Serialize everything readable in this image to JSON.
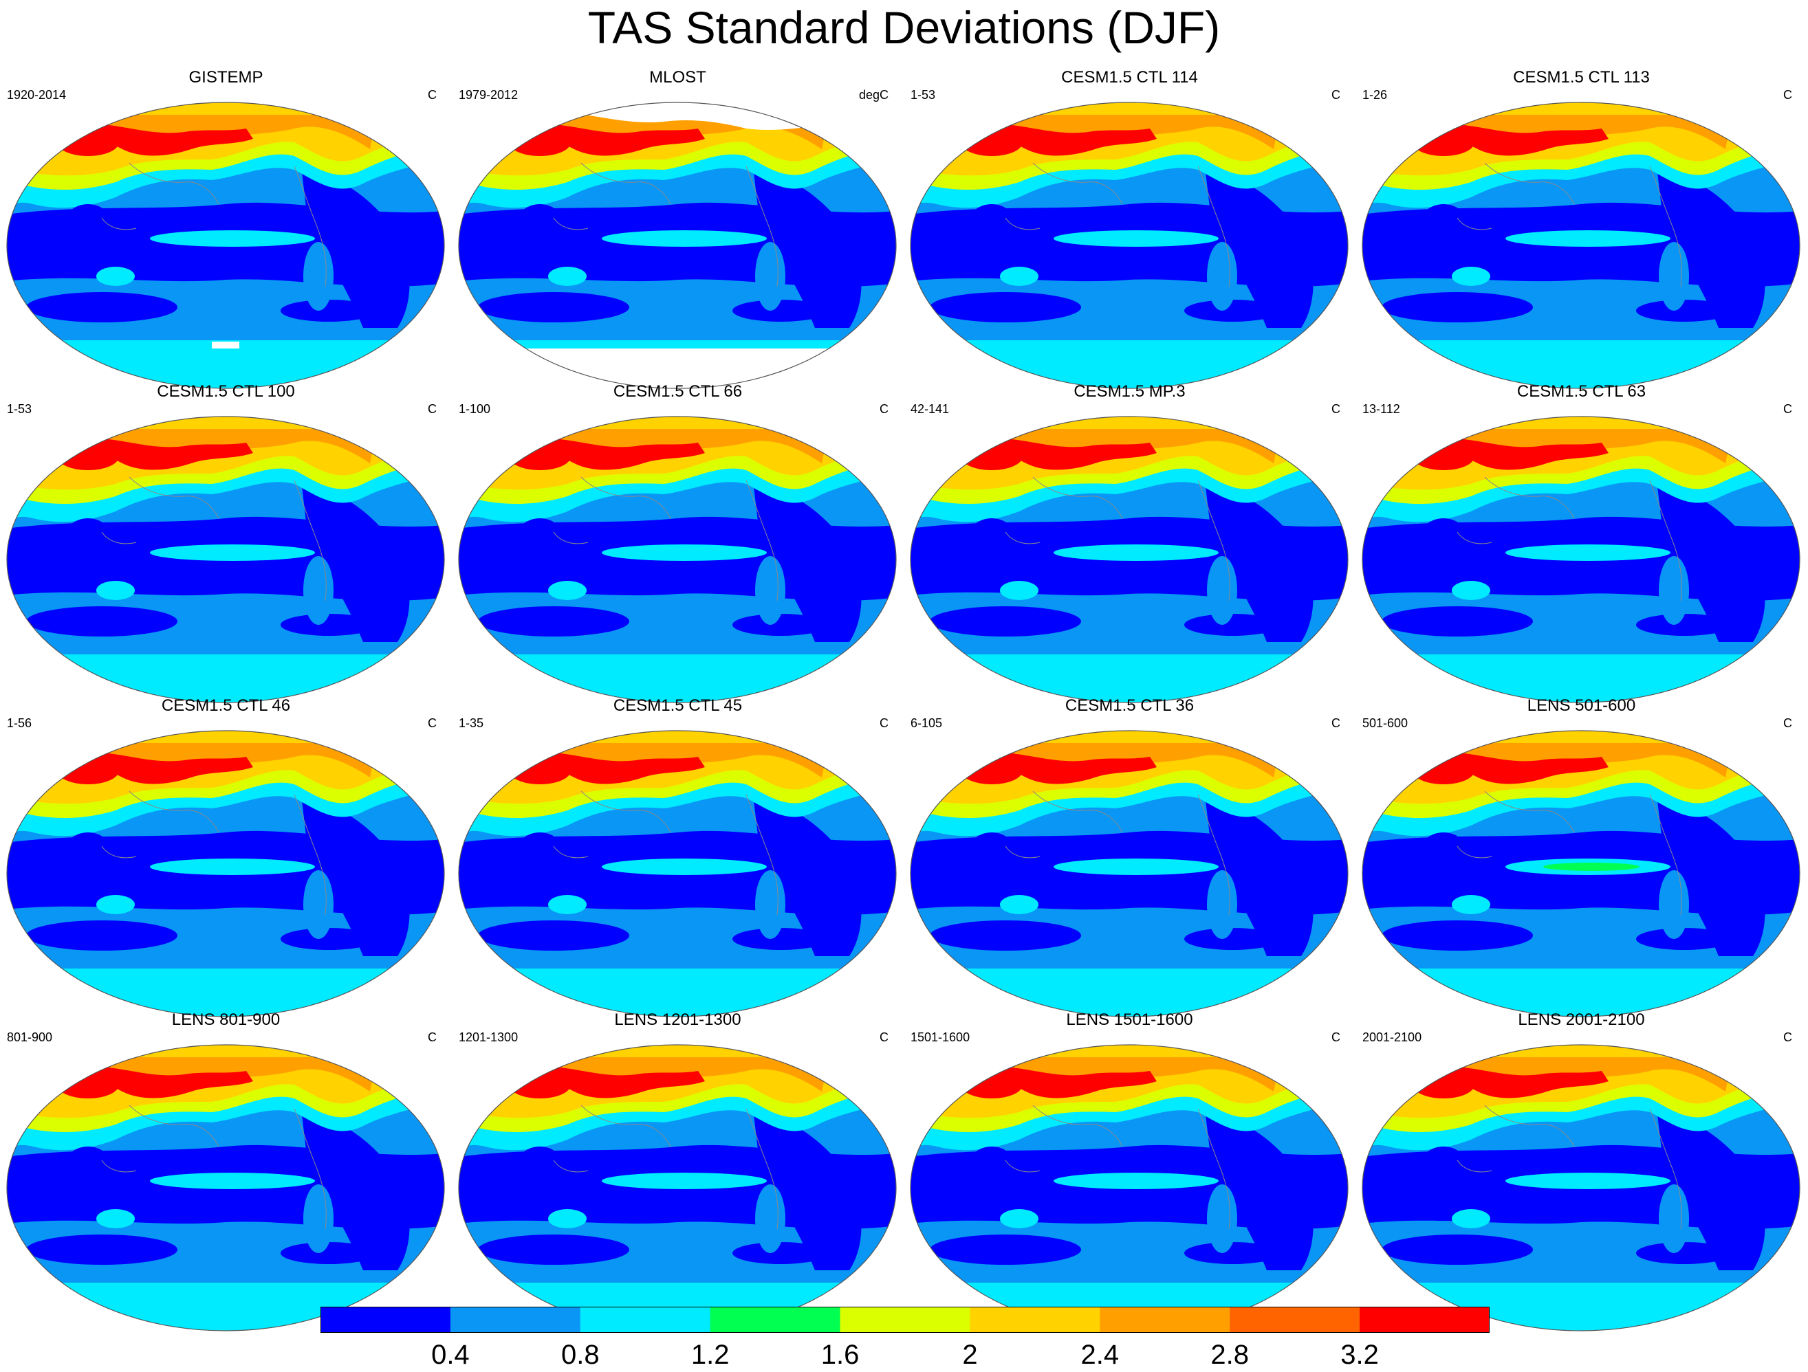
{
  "title": "TAS Standard Deviations (DJF)",
  "panels": [
    {
      "title": "GISTEMP",
      "left": "1920-2014",
      "right": "C",
      "missing": "gistemp"
    },
    {
      "title": "MLOST",
      "left": "1979-2012",
      "right": "degC",
      "missing": "mlost"
    },
    {
      "title": "CESM1.5 CTL 114",
      "left": "1-53",
      "right": "C"
    },
    {
      "title": "CESM1.5 CTL 113",
      "left": "1-26",
      "right": "C"
    },
    {
      "title": "CESM1.5 CTL 100",
      "left": "1-53",
      "right": "C"
    },
    {
      "title": "CESM1.5 CTL 66",
      "left": "1-100",
      "right": "C"
    },
    {
      "title": "CESM1.5 MP.3",
      "left": "42-141",
      "right": "C"
    },
    {
      "title": "CESM1.5 CTL 63",
      "left": "13-112",
      "right": "C"
    },
    {
      "title": "CESM1.5 CTL 46",
      "left": "1-56",
      "right": "C"
    },
    {
      "title": "CESM1.5 CTL 45",
      "left": "1-35",
      "right": "C"
    },
    {
      "title": "CESM1.5 CTL 36",
      "left": "6-105",
      "right": "C"
    },
    {
      "title": "LENS 501-600",
      "left": "501-600",
      "right": "C"
    },
    {
      "title": "LENS 801-900",
      "left": "801-900",
      "right": "C"
    },
    {
      "title": "LENS 1201-1300",
      "left": "1201-1300",
      "right": "C"
    },
    {
      "title": "LENS 1501-1600",
      "left": "1501-1600",
      "right": "C"
    },
    {
      "title": "LENS 2001-2100",
      "left": "2001-2100",
      "right": "C"
    }
  ],
  "colorbar": {
    "colors": [
      "#0000ff",
      "#0a96f5",
      "#00ebff",
      "#00ff50",
      "#dcff00",
      "#ffd200",
      "#ffa000",
      "#ff6400",
      "#ff0000"
    ],
    "labels": [
      "0.4",
      "0.8",
      "1.2",
      "1.6",
      "2",
      "2.4",
      "2.8",
      "3.2"
    ]
  }
}
